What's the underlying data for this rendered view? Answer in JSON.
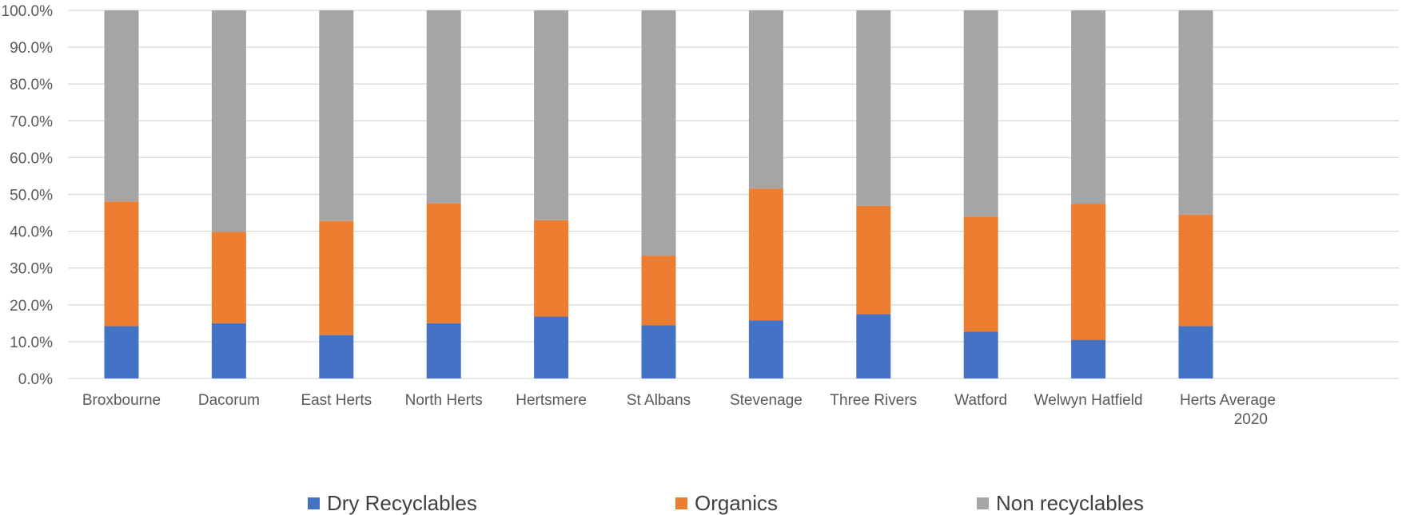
{
  "chart_data": {
    "type": "bar",
    "stacked": true,
    "categories": [
      "Broxbourne",
      "Dacorum",
      "East Herts",
      "North Herts",
      "Hertsmere",
      "St Albans",
      "Stevenage",
      "Three Rivers",
      "Watford",
      "Welwyn Hatfield",
      "Herts Average 2020"
    ],
    "series": [
      {
        "name": "Dry Recyclables",
        "color": "#4472C4",
        "values": [
          14.2,
          15.0,
          11.8,
          15.0,
          16.8,
          14.5,
          15.8,
          17.5,
          12.7,
          10.5,
          14.2
        ]
      },
      {
        "name": "Organics",
        "color": "#ED7D31",
        "values": [
          33.9,
          24.8,
          31.0,
          32.6,
          26.2,
          18.8,
          35.8,
          29.4,
          31.3,
          36.9,
          30.3
        ]
      },
      {
        "name": "Non recyclables",
        "color": "#A5A5A5",
        "values": [
          51.9,
          60.2,
          57.2,
          52.4,
          57.0,
          66.7,
          48.4,
          53.1,
          56.0,
          52.6,
          55.5
        ]
      }
    ],
    "ylim": [
      0,
      100
    ],
    "yticks": [
      "0.0%",
      "10.0%",
      "20.0%",
      "30.0%",
      "40.0%",
      "50.0%",
      "60.0%",
      "70.0%",
      "80.0%",
      "90.0%",
      "100.0%"
    ],
    "grid": true,
    "legend": "bottom"
  }
}
